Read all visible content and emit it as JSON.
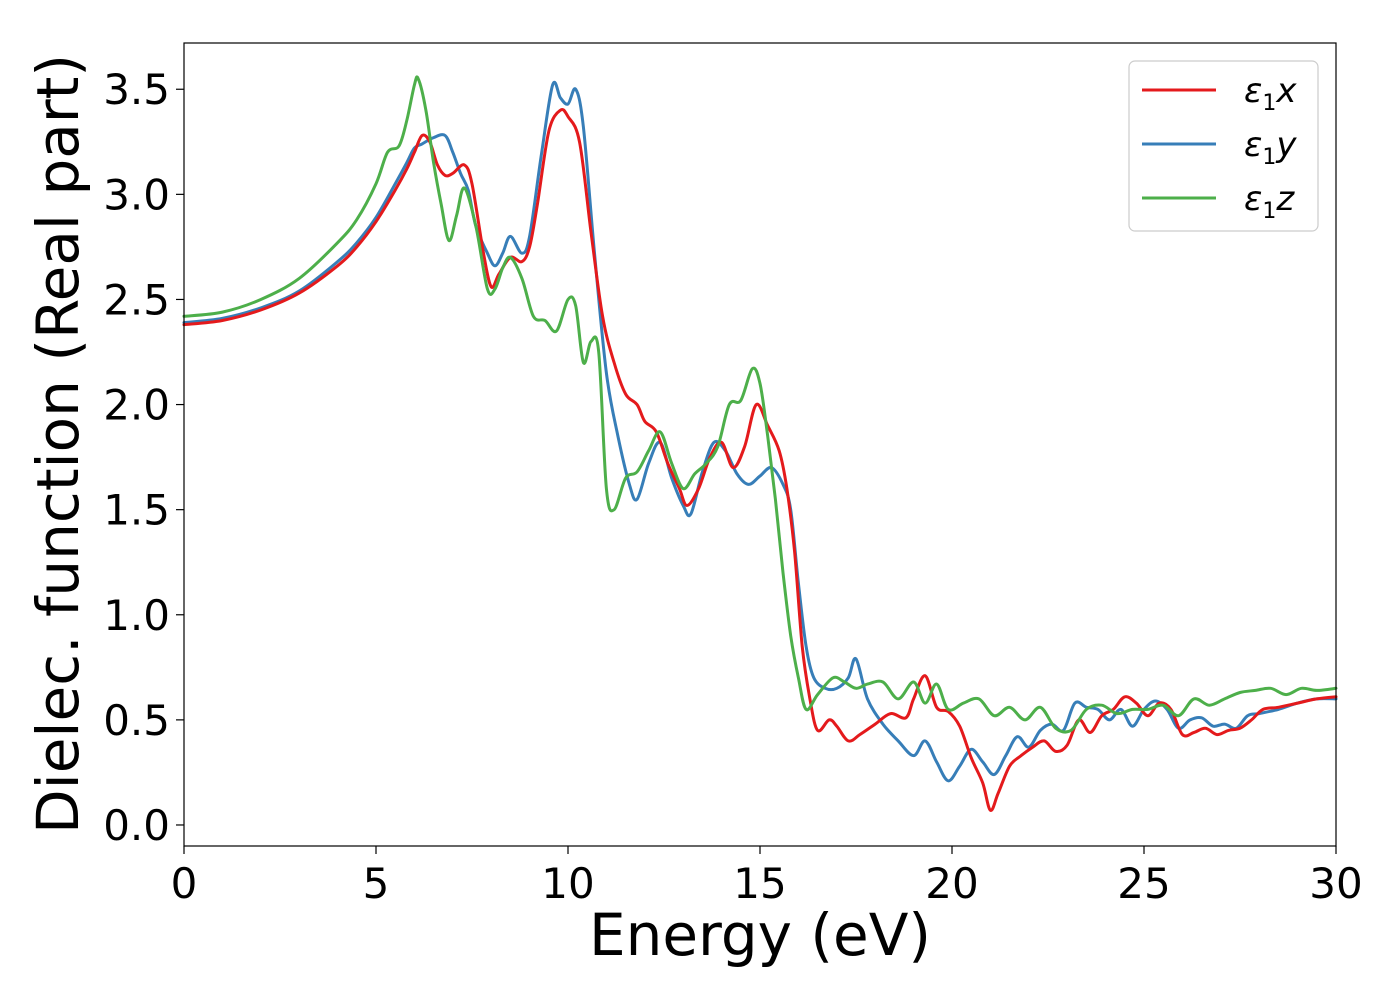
{
  "chart_data": {
    "type": "line",
    "xlabel": "Energy (eV)",
    "ylabel": "Dielec. function (Real part)",
    "xlim": [
      0,
      30
    ],
    "ylim": [
      -0.1,
      3.72
    ],
    "xticks": [
      0,
      5,
      10,
      15,
      20,
      25,
      30
    ],
    "yticks": [
      0.0,
      0.5,
      1.0,
      1.5,
      2.0,
      2.5,
      3.0,
      3.5
    ],
    "xtick_labels": [
      "0",
      "5",
      "10",
      "15",
      "20",
      "25",
      "30"
    ],
    "ytick_labels": [
      "0.0",
      "0.5",
      "1.0",
      "1.5",
      "2.0",
      "2.5",
      "3.0",
      "3.5"
    ],
    "grid": false,
    "legend_position": "top-right",
    "series": [
      {
        "name": "ε1x",
        "legend": {
          "symbol": "ε",
          "sub": "1",
          "suffix": "x"
        },
        "color": "#e41a1c",
        "x": [
          0,
          1,
          2,
          3,
          4,
          4.5,
          5,
          5.5,
          5.8,
          6.0,
          6.2,
          6.4,
          6.6,
          6.8,
          7.0,
          7.3,
          7.5,
          7.8,
          8.0,
          8.2,
          8.5,
          8.8,
          9.0,
          9.2,
          9.5,
          9.8,
          10.0,
          10.3,
          10.6,
          10.9,
          11.2,
          11.5,
          11.8,
          12.0,
          12.3,
          12.6,
          12.9,
          13.1,
          13.4,
          13.7,
          14.0,
          14.3,
          14.6,
          14.9,
          15.2,
          15.5,
          15.7,
          15.9,
          16.1,
          16.3,
          16.5,
          16.8,
          17.0,
          17.3,
          17.6,
          18.0,
          18.4,
          18.8,
          19.0,
          19.3,
          19.6,
          19.9,
          20.2,
          20.5,
          20.8,
          21.0,
          21.2,
          21.5,
          21.8,
          22.1,
          22.4,
          22.7,
          23.0,
          23.3,
          23.6,
          23.9,
          24.2,
          24.5,
          24.8,
          25.1,
          25.4,
          25.7,
          26.0,
          26.3,
          26.6,
          26.9,
          27.2,
          27.5,
          27.8,
          28.1,
          28.5,
          29.0,
          29.5,
          30.0
        ],
        "values": [
          2.38,
          2.4,
          2.45,
          2.53,
          2.66,
          2.75,
          2.87,
          3.02,
          3.12,
          3.2,
          3.28,
          3.25,
          3.14,
          3.09,
          3.1,
          3.14,
          3.05,
          2.72,
          2.56,
          2.62,
          2.7,
          2.68,
          2.75,
          2.95,
          3.3,
          3.4,
          3.37,
          3.25,
          2.82,
          2.42,
          2.2,
          2.05,
          2.0,
          1.92,
          1.87,
          1.72,
          1.6,
          1.52,
          1.6,
          1.75,
          1.82,
          1.7,
          1.8,
          2.0,
          1.9,
          1.78,
          1.6,
          1.3,
          0.85,
          0.6,
          0.45,
          0.5,
          0.47,
          0.4,
          0.43,
          0.48,
          0.53,
          0.51,
          0.6,
          0.71,
          0.56,
          0.54,
          0.47,
          0.32,
          0.2,
          0.07,
          0.15,
          0.28,
          0.33,
          0.37,
          0.4,
          0.35,
          0.38,
          0.5,
          0.44,
          0.52,
          0.55,
          0.61,
          0.58,
          0.52,
          0.58,
          0.55,
          0.43,
          0.44,
          0.46,
          0.43,
          0.45,
          0.46,
          0.5,
          0.55,
          0.56,
          0.58,
          0.6,
          0.61
        ]
      },
      {
        "name": "ε1y",
        "legend": {
          "symbol": "ε",
          "sub": "1",
          "suffix": "y"
        },
        "color": "#377eb8",
        "x": [
          0,
          1,
          2,
          3,
          4,
          4.5,
          5,
          5.5,
          5.8,
          6.0,
          6.2,
          6.5,
          6.8,
          7.0,
          7.2,
          7.4,
          7.6,
          7.9,
          8.1,
          8.3,
          8.5,
          8.8,
          9.0,
          9.3,
          9.6,
          9.8,
          10.0,
          10.2,
          10.4,
          10.7,
          11.0,
          11.3,
          11.6,
          11.8,
          12.1,
          12.4,
          12.7,
          13.0,
          13.2,
          13.5,
          13.8,
          14.1,
          14.4,
          14.7,
          15.0,
          15.3,
          15.6,
          15.8,
          16.0,
          16.2,
          16.4,
          16.7,
          17.0,
          17.3,
          17.5,
          17.8,
          18.2,
          18.6,
          19.0,
          19.3,
          19.6,
          19.9,
          20.2,
          20.5,
          20.8,
          21.1,
          21.4,
          21.7,
          22.0,
          22.3,
          22.6,
          22.9,
          23.2,
          23.5,
          23.8,
          24.1,
          24.4,
          24.7,
          25.0,
          25.3,
          25.6,
          25.9,
          26.2,
          26.5,
          26.8,
          27.1,
          27.4,
          27.7,
          28.0,
          28.5,
          29.0,
          29.5,
          30.0
        ],
        "values": [
          2.39,
          2.41,
          2.46,
          2.54,
          2.68,
          2.77,
          2.89,
          3.05,
          3.15,
          3.22,
          3.24,
          3.27,
          3.28,
          3.2,
          3.1,
          3.02,
          2.85,
          2.72,
          2.66,
          2.72,
          2.8,
          2.72,
          2.8,
          3.18,
          3.52,
          3.46,
          3.43,
          3.5,
          3.32,
          2.7,
          2.15,
          1.85,
          1.62,
          1.55,
          1.72,
          1.82,
          1.65,
          1.52,
          1.48,
          1.68,
          1.82,
          1.78,
          1.67,
          1.62,
          1.66,
          1.7,
          1.62,
          1.5,
          1.15,
          0.85,
          0.7,
          0.65,
          0.65,
          0.7,
          0.79,
          0.6,
          0.48,
          0.4,
          0.33,
          0.4,
          0.3,
          0.21,
          0.28,
          0.36,
          0.3,
          0.24,
          0.33,
          0.42,
          0.37,
          0.45,
          0.48,
          0.45,
          0.58,
          0.56,
          0.55,
          0.5,
          0.55,
          0.47,
          0.55,
          0.59,
          0.55,
          0.46,
          0.5,
          0.51,
          0.47,
          0.48,
          0.46,
          0.52,
          0.53,
          0.55,
          0.58,
          0.6,
          0.6
        ]
      },
      {
        "name": "ε1z",
        "legend": {
          "symbol": "ε",
          "sub": "1",
          "suffix": "z"
        },
        "color": "#4daf4a",
        "x": [
          0,
          1,
          2,
          3,
          4,
          4.5,
          5,
          5.3,
          5.6,
          5.8,
          6.0,
          6.1,
          6.3,
          6.5,
          6.7,
          6.9,
          7.1,
          7.3,
          7.6,
          7.9,
          8.1,
          8.3,
          8.5,
          8.8,
          9.1,
          9.4,
          9.7,
          10.0,
          10.2,
          10.4,
          10.6,
          10.8,
          11.0,
          11.2,
          11.5,
          11.8,
          12.1,
          12.4,
          12.7,
          13.0,
          13.3,
          13.6,
          13.9,
          14.2,
          14.5,
          14.8,
          15.0,
          15.2,
          15.4,
          15.6,
          15.8,
          16.0,
          16.2,
          16.5,
          16.9,
          17.2,
          17.5,
          17.8,
          18.2,
          18.6,
          19.0,
          19.3,
          19.6,
          19.9,
          20.3,
          20.7,
          21.1,
          21.5,
          21.9,
          22.3,
          22.7,
          23.1,
          23.5,
          23.9,
          24.3,
          24.7,
          25.1,
          25.5,
          25.9,
          26.3,
          26.7,
          27.1,
          27.5,
          27.9,
          28.3,
          28.7,
          29.1,
          29.5,
          30.0
        ],
        "values": [
          2.42,
          2.44,
          2.5,
          2.6,
          2.77,
          2.88,
          3.05,
          3.2,
          3.23,
          3.35,
          3.52,
          3.55,
          3.4,
          3.15,
          2.95,
          2.78,
          2.9,
          3.03,
          2.85,
          2.55,
          2.55,
          2.65,
          2.7,
          2.6,
          2.42,
          2.4,
          2.35,
          2.5,
          2.47,
          2.2,
          2.3,
          2.25,
          1.6,
          1.5,
          1.65,
          1.68,
          1.78,
          1.87,
          1.72,
          1.6,
          1.67,
          1.72,
          1.8,
          2.0,
          2.02,
          2.17,
          2.1,
          1.85,
          1.55,
          1.2,
          0.9,
          0.7,
          0.55,
          0.62,
          0.7,
          0.68,
          0.65,
          0.67,
          0.68,
          0.6,
          0.68,
          0.58,
          0.67,
          0.55,
          0.58,
          0.6,
          0.52,
          0.56,
          0.5,
          0.56,
          0.46,
          0.45,
          0.55,
          0.57,
          0.53,
          0.55,
          0.55,
          0.57,
          0.52,
          0.6,
          0.57,
          0.6,
          0.63,
          0.64,
          0.65,
          0.62,
          0.65,
          0.64,
          0.65
        ]
      }
    ]
  }
}
